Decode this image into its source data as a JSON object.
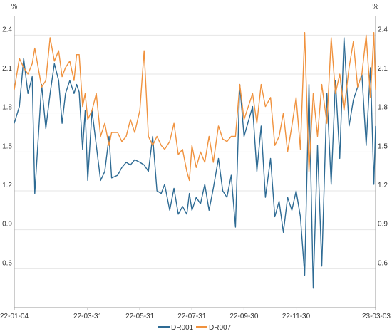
{
  "chart_data": {
    "type": "line",
    "y_unit_left": "%",
    "y_unit_right": "%",
    "ylim": [
      0.3,
      2.55
    ],
    "y_ticks": [
      0.6,
      0.9,
      1.2,
      1.5,
      1.8,
      2.1,
      2.4
    ],
    "y_tick_labels": [
      "0.6",
      "0.9",
      "1.2",
      "1.5",
      "1.8",
      "2.1",
      "2.4"
    ],
    "x_tick_labels": [
      "22-01-04",
      "22-03-31",
      "22-05-31",
      "22-07-31",
      "22-09-30",
      "22-11-30",
      "23-03-03"
    ],
    "x_tick_dates": [
      "2022-01-04",
      "2022-03-31",
      "2022-05-31",
      "2022-07-31",
      "2022-09-30",
      "2022-11-30",
      "2023-03-03"
    ],
    "grid": "horizontal",
    "legend_position": "bottom-center",
    "colors": {
      "DR001": "#2e6b94",
      "DR007": "#f0923e",
      "grid": "#e6e6e6",
      "axis": "#999999"
    },
    "series": [
      {
        "name": "DR001",
        "x": [
          "2022-01-04",
          "2022-01-10",
          "2022-01-15",
          "2022-01-20",
          "2022-01-25",
          "2022-01-28",
          "2022-02-05",
          "2022-02-10",
          "2022-02-15",
          "2022-02-20",
          "2022-02-25",
          "2022-03-01",
          "2022-03-05",
          "2022-03-10",
          "2022-03-15",
          "2022-03-18",
          "2022-03-21",
          "2022-03-25",
          "2022-03-28",
          "2022-03-31",
          "2022-04-05",
          "2022-04-10",
          "2022-04-15",
          "2022-04-20",
          "2022-04-25",
          "2022-04-28",
          "2022-05-05",
          "2022-05-10",
          "2022-05-15",
          "2022-05-20",
          "2022-05-25",
          "2022-05-31",
          "2022-06-05",
          "2022-06-10",
          "2022-06-15",
          "2022-06-20",
          "2022-06-25",
          "2022-06-29",
          "2022-07-05",
          "2022-07-10",
          "2022-07-15",
          "2022-07-20",
          "2022-07-25",
          "2022-07-28",
          "2022-07-31",
          "2022-08-05",
          "2022-08-10",
          "2022-08-15",
          "2022-08-20",
          "2022-08-25",
          "2022-08-31",
          "2022-09-05",
          "2022-09-10",
          "2022-09-15",
          "2022-09-20",
          "2022-09-25",
          "2022-09-30",
          "2022-10-10",
          "2022-10-15",
          "2022-10-20",
          "2022-10-25",
          "2022-10-31",
          "2022-11-05",
          "2022-11-10",
          "2022-11-15",
          "2022-11-20",
          "2022-11-25",
          "2022-11-30",
          "2022-12-05",
          "2022-12-10",
          "2022-12-15",
          "2022-12-20",
          "2022-12-25",
          "2022-12-30",
          "2023-01-05",
          "2023-01-10",
          "2023-01-15",
          "2023-01-20",
          "2023-01-25",
          "2023-01-31",
          "2023-02-05",
          "2023-02-10",
          "2023-02-15",
          "2023-02-20",
          "2023-02-25",
          "2023-03-01",
          "2023-03-03"
        ],
        "values": [
          1.72,
          1.85,
          2.22,
          1.95,
          2.08,
          1.18,
          2.02,
          1.68,
          1.95,
          2.18,
          2.05,
          1.72,
          1.95,
          2.05,
          1.95,
          2.02,
          1.96,
          1.52,
          1.82,
          1.28,
          1.82,
          1.55,
          1.28,
          1.35,
          1.62,
          1.3,
          1.32,
          1.38,
          1.42,
          1.4,
          1.44,
          1.42,
          1.4,
          1.35,
          1.62,
          1.2,
          1.18,
          1.25,
          1.05,
          1.22,
          1.02,
          1.08,
          1.02,
          1.18,
          1.05,
          1.15,
          1.1,
          1.25,
          1.05,
          1.22,
          1.45,
          1.2,
          1.15,
          1.32,
          0.92,
          2.02,
          1.62,
          1.85,
          1.35,
          1.7,
          1.15,
          1.45,
          1.0,
          1.12,
          0.88,
          1.15,
          1.05,
          1.2,
          1.0,
          0.55,
          2.02,
          0.45,
          1.55,
          0.62,
          1.95,
          1.25,
          2.05,
          1.45,
          2.38,
          1.7,
          1.9,
          2.0,
          2.1,
          1.55,
          2.15,
          1.25,
          1.7
        ]
      },
      {
        "name": "DR007",
        "x": [
          "2022-01-04",
          "2022-01-10",
          "2022-01-15",
          "2022-01-20",
          "2022-01-25",
          "2022-01-28",
          "2022-02-05",
          "2022-02-10",
          "2022-02-15",
          "2022-02-20",
          "2022-02-25",
          "2022-03-01",
          "2022-03-05",
          "2022-03-10",
          "2022-03-15",
          "2022-03-18",
          "2022-03-21",
          "2022-03-25",
          "2022-03-28",
          "2022-03-31",
          "2022-04-05",
          "2022-04-10",
          "2022-04-15",
          "2022-04-20",
          "2022-04-25",
          "2022-04-28",
          "2022-05-05",
          "2022-05-10",
          "2022-05-15",
          "2022-05-20",
          "2022-05-25",
          "2022-05-31",
          "2022-06-05",
          "2022-06-10",
          "2022-06-15",
          "2022-06-20",
          "2022-06-25",
          "2022-06-29",
          "2022-07-05",
          "2022-07-10",
          "2022-07-15",
          "2022-07-20",
          "2022-07-25",
          "2022-07-28",
          "2022-07-31",
          "2022-08-05",
          "2022-08-10",
          "2022-08-15",
          "2022-08-20",
          "2022-08-25",
          "2022-08-31",
          "2022-09-05",
          "2022-09-10",
          "2022-09-15",
          "2022-09-20",
          "2022-09-25",
          "2022-09-30",
          "2022-10-10",
          "2022-10-15",
          "2022-10-20",
          "2022-10-25",
          "2022-10-31",
          "2022-11-05",
          "2022-11-10",
          "2022-11-15",
          "2022-11-20",
          "2022-11-25",
          "2022-11-30",
          "2022-12-05",
          "2022-12-10",
          "2022-12-15",
          "2022-12-20",
          "2022-12-25",
          "2022-12-30",
          "2023-01-05",
          "2023-01-10",
          "2023-01-15",
          "2023-01-20",
          "2023-01-25",
          "2023-01-31",
          "2023-02-05",
          "2023-02-10",
          "2023-02-15",
          "2023-02-20",
          "2023-02-25",
          "2023-03-01",
          "2023-03-03"
        ],
        "values": [
          1.98,
          2.22,
          2.15,
          2.1,
          2.18,
          2.3,
          2.0,
          2.05,
          2.38,
          2.2,
          2.28,
          2.08,
          2.15,
          2.2,
          2.05,
          2.25,
          2.25,
          1.85,
          1.95,
          1.75,
          1.82,
          1.95,
          1.62,
          1.72,
          1.55,
          1.65,
          1.65,
          1.58,
          1.62,
          1.75,
          1.65,
          1.82,
          2.28,
          1.62,
          1.55,
          1.62,
          1.55,
          1.52,
          1.58,
          1.72,
          1.48,
          1.52,
          1.35,
          1.28,
          1.55,
          1.38,
          1.5,
          1.42,
          1.62,
          1.42,
          1.7,
          1.6,
          1.58,
          1.62,
          1.62,
          2.02,
          1.75,
          1.95,
          1.72,
          2.02,
          1.85,
          1.92,
          1.55,
          1.62,
          1.8,
          1.5,
          1.7,
          1.92,
          1.52,
          2.42,
          1.35,
          1.95,
          1.62,
          2.02,
          1.72,
          2.38,
          1.95,
          2.1,
          1.82,
          2.15,
          2.35,
          2.0,
          2.1,
          2.4,
          1.92,
          2.42,
          1.98
        ]
      }
    ]
  }
}
